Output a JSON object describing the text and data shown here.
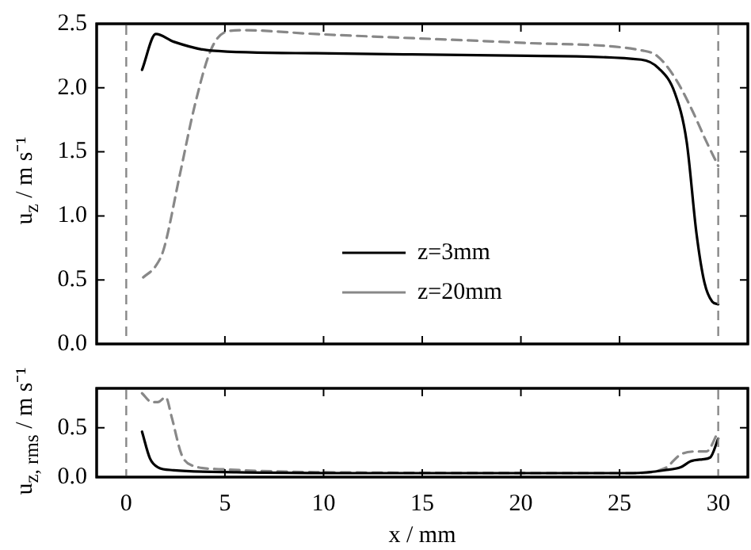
{
  "chart_data": [
    {
      "type": "line",
      "ylabel": "u$_{z}$ / m s⁻¹",
      "xlim": [
        -1.5,
        31.5
      ],
      "xticks": [
        0,
        5,
        10,
        15,
        20,
        25,
        30
      ],
      "ylim": [
        0,
        2.5
      ],
      "yticks": [
        {
          "value": 0,
          "label": "0.0"
        },
        {
          "value": 0.5,
          "label": "0.5"
        },
        {
          "value": 1,
          "label": "1.0"
        },
        {
          "value": 1.5,
          "label": "1.5"
        },
        {
          "value": 2,
          "label": "2.0"
        },
        {
          "value": 2.5,
          "label": "2.5"
        }
      ],
      "tick_labels": "y",
      "legend": "bottom",
      "marker": "none",
      "ref_lines": [
        {
          "axis": "x",
          "value": 0,
          "color": "#888888",
          "line_style": "dashed"
        },
        {
          "axis": "x",
          "value": 30,
          "color": "#888888",
          "line_style": "dashed"
        }
      ],
      "series": [
        {
          "name": "z=3mm",
          "color": "#000000",
          "line_style": "solid",
          "x": [
            0.8,
            1.5,
            2.4,
            4.3,
            9.6,
            20.3,
            26.1,
            27.0,
            27.8,
            28.4,
            28.9,
            29.3,
            29.7,
            30
          ],
          "values": [
            2.14,
            2.42,
            2.36,
            2.29,
            2.27,
            2.25,
            2.22,
            2.15,
            1.96,
            1.58,
            0.86,
            0.48,
            0.33,
            0.31
          ]
        },
        {
          "name": "z=20mm",
          "color": "#888888",
          "line_style": "dashed",
          "x": [
            0.86,
            1.5,
            1.9,
            2.7,
            3.5,
            4.3,
            5.1,
            5.9,
            9.6,
            20.3,
            26.2,
            26.9,
            27.8,
            28.6,
            29.4,
            30
          ],
          "values": [
            0.52,
            0.61,
            0.74,
            1.31,
            1.88,
            2.3,
            2.44,
            2.45,
            2.42,
            2.35,
            2.29,
            2.25,
            2.08,
            1.85,
            1.58,
            1.39
          ]
        }
      ]
    },
    {
      "type": "line",
      "xlabel": "x / mm",
      "ylabel": "u$_{z, rms}$ / m s⁻¹",
      "xlim": [
        -1.5,
        31.5
      ],
      "xticks": [
        0,
        5,
        10,
        15,
        20,
        25,
        30
      ],
      "ylim": [
        0,
        0.9
      ],
      "yticks": [
        {
          "value": 0,
          "label": "0.0"
        },
        {
          "value": 0.5,
          "label": "0.5"
        }
      ],
      "marker": "none",
      "ref_lines": [
        {
          "axis": "x",
          "value": 0,
          "color": "#888888",
          "line_style": "dashed"
        },
        {
          "axis": "x",
          "value": 30,
          "color": "#888888",
          "line_style": "dashed"
        }
      ],
      "series": [
        {
          "color": "#000000",
          "line_style": "solid",
          "x": [
            0.8,
            1.2,
            1.6,
            2.4,
            5.6,
            15,
            25.7,
            27.3,
            28.1,
            28.6,
            29.2,
            29.6,
            30
          ],
          "values": [
            0.46,
            0.19,
            0.1,
            0.07,
            0.05,
            0.04,
            0.04,
            0.07,
            0.1,
            0.16,
            0.18,
            0.2,
            0.39
          ]
        },
        {
          "color": "#888888",
          "line_style": "dashed",
          "x": [
            0.8,
            1.3,
            1.6,
            2.0,
            2.3,
            2.8,
            3.3,
            4.8,
            9.6,
            25.7,
            27.3,
            28.1,
            28.9,
            29.4,
            30
          ],
          "values": [
            0.85,
            0.76,
            0.76,
            0.81,
            0.61,
            0.23,
            0.12,
            0.08,
            0.05,
            0.04,
            0.09,
            0.23,
            0.26,
            0.26,
            0.46
          ]
        }
      ]
    }
  ]
}
